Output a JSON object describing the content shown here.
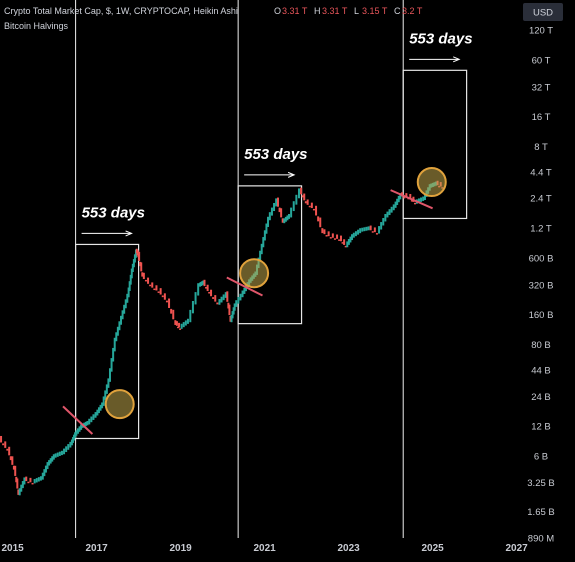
{
  "header": {
    "symbol_line": "Crypto Total Market Cap, $, 1W, CRYPTOCAP, Heikin Ashi",
    "ohlc": [
      {
        "key": "O",
        "value": "3.31 T"
      },
      {
        "key": "H",
        "value": "3.31 T"
      },
      {
        "key": "L",
        "value": "3.15 T"
      },
      {
        "key": "C",
        "value": "3.2 T"
      }
    ],
    "indicator": "Bitcoin Halvings",
    "currency_button": "USD"
  },
  "chart_data": {
    "type": "line",
    "title": "Crypto Total Market Cap, $, 1W, CRYPTOCAP, Heikin Ashi",
    "y_scale": "log",
    "ylim_usd": [
      890000000,
      120000000000000
    ],
    "x_range": [
      2014.7,
      2027.2
    ],
    "y_ticks": [
      {
        "label": "120 T",
        "value": 120000000000000
      },
      {
        "label": "60 T",
        "value": 60000000000000
      },
      {
        "label": "32 T",
        "value": 32000000000000
      },
      {
        "label": "16 T",
        "value": 16000000000000
      },
      {
        "label": "8 T",
        "value": 8000000000000
      },
      {
        "label": "4.4 T",
        "value": 4400000000000
      },
      {
        "label": "2.4 T",
        "value": 2400000000000
      },
      {
        "label": "1.2 T",
        "value": 1200000000000
      },
      {
        "label": "600 B",
        "value": 600000000000
      },
      {
        "label": "320 B",
        "value": 320000000000
      },
      {
        "label": "160 B",
        "value": 160000000000
      },
      {
        "label": "80 B",
        "value": 80000000000
      },
      {
        "label": "44 B",
        "value": 44000000000
      },
      {
        "label": "24 B",
        "value": 24000000000
      },
      {
        "label": "12 B",
        "value": 12000000000
      },
      {
        "label": "6 B",
        "value": 6000000000
      },
      {
        "label": "3.25 B",
        "value": 3250000000
      },
      {
        "label": "1.65 B",
        "value": 1650000000
      },
      {
        "label": "890 M",
        "value": 890000000
      }
    ],
    "x_ticks": [
      {
        "label": "2015",
        "value": 2015
      },
      {
        "label": "2017",
        "value": 2017
      },
      {
        "label": "2019",
        "value": 2019
      },
      {
        "label": "2021",
        "value": 2021
      },
      {
        "label": "2023",
        "value": 2023
      },
      {
        "label": "2025",
        "value": 2025
      },
      {
        "label": "2027",
        "value": 2027
      }
    ],
    "halvings": [
      2016.5,
      2020.37,
      2024.3
    ],
    "series": [
      {
        "points": [
          [
            2014.7,
            9000000000.0
          ],
          [
            2014.9,
            7000000000.0
          ],
          [
            2015.05,
            4500000000.0
          ],
          [
            2015.15,
            2500000000.0
          ],
          [
            2015.3,
            3500000000.0
          ],
          [
            2015.5,
            3300000000.0
          ],
          [
            2015.7,
            3600000000.0
          ],
          [
            2015.85,
            5000000000.0
          ],
          [
            2016.0,
            6000000000.0
          ],
          [
            2016.2,
            6500000000.0
          ],
          [
            2016.4,
            8000000000.0
          ],
          [
            2016.5,
            10000000000.0
          ],
          [
            2016.65,
            12000000000.0
          ],
          [
            2016.8,
            13000000000.0
          ],
          [
            2017.0,
            16000000000.0
          ],
          [
            2017.15,
            20000000000.0
          ],
          [
            2017.3,
            35000000000.0
          ],
          [
            2017.45,
            90000000000.0
          ],
          [
            2017.6,
            150000000000.0
          ],
          [
            2017.75,
            250000000000.0
          ],
          [
            2017.85,
            450000000000.0
          ],
          [
            2017.95,
            700000000000.0
          ],
          [
            2018.0,
            650000000000.0
          ],
          [
            2018.1,
            400000000000.0
          ],
          [
            2018.3,
            320000000000.0
          ],
          [
            2018.5,
            280000000000.0
          ],
          [
            2018.7,
            220000000000.0
          ],
          [
            2018.9,
            130000000000.0
          ],
          [
            2019.0,
            120000000000.0
          ],
          [
            2019.2,
            140000000000.0
          ],
          [
            2019.45,
            320000000000.0
          ],
          [
            2019.55,
            340000000000.0
          ],
          [
            2019.7,
            270000000000.0
          ],
          [
            2019.9,
            210000000000.0
          ],
          [
            2020.1,
            260000000000.0
          ],
          [
            2020.2,
            140000000000.0
          ],
          [
            2020.3,
            200000000000.0
          ],
          [
            2020.5,
            270000000000.0
          ],
          [
            2020.65,
            350000000000.0
          ],
          [
            2020.8,
            420000000000.0
          ],
          [
            2020.95,
            800000000000.0
          ],
          [
            2021.1,
            1500000000000.0
          ],
          [
            2021.3,
            2300000000000.0
          ],
          [
            2021.45,
            1400000000000.0
          ],
          [
            2021.6,
            1600000000000.0
          ],
          [
            2021.85,
            2900000000000.0
          ],
          [
            2022.0,
            2200000000000.0
          ],
          [
            2022.2,
            1900000000000.0
          ],
          [
            2022.4,
            1100000000000.0
          ],
          [
            2022.6,
            1000000000000.0
          ],
          [
            2022.8,
            950000000000.0
          ],
          [
            2022.95,
            800000000000.0
          ],
          [
            2023.1,
            1000000000000.0
          ],
          [
            2023.3,
            1150000000000.0
          ],
          [
            2023.5,
            1200000000000.0
          ],
          [
            2023.7,
            1100000000000.0
          ],
          [
            2023.9,
            1600000000000.0
          ],
          [
            2024.1,
            2000000000000.0
          ],
          [
            2024.25,
            2600000000000.0
          ],
          [
            2024.45,
            2500000000000.0
          ],
          [
            2024.6,
            2200000000000.0
          ],
          [
            2024.8,
            2400000000000.0
          ],
          [
            2024.95,
            3200000000000.0
          ],
          [
            2025.1,
            3400000000000.0
          ],
          [
            2025.25,
            3200000000000.0
          ]
        ]
      }
    ],
    "annotations": [
      {
        "text": "553 days",
        "halving": 2016.5,
        "box": {
          "x0": 2016.5,
          "x1": 2018.0,
          "y0": 9000000000.0,
          "y1": 820000000000.0
        }
      },
      {
        "text": "553 days",
        "halving": 2020.37,
        "box": {
          "x0": 2020.37,
          "x1": 2021.88,
          "y0": 130000000000.0,
          "y1": 3200000000000.0
        }
      },
      {
        "text": "553 days",
        "halving": 2024.3,
        "box": {
          "x0": 2024.3,
          "x1": 2025.81,
          "y0": 1500000000000.0,
          "y1": 47000000000000.0
        }
      }
    ],
    "halving_markers": [
      {
        "x": 2017.55,
        "y": 20000000000.0
      },
      {
        "x": 2020.75,
        "y": 420000000000.0
      },
      {
        "x": 2024.98,
        "y": 3500000000000.0
      }
    ],
    "trend_cuts": [
      {
        "x0": 2016.2,
        "y0": 19000000000.0,
        "x1": 2016.9,
        "y1": 10000000000.0
      },
      {
        "x0": 2020.1,
        "y0": 380000000000.0,
        "x1": 2020.95,
        "y1": 250000000000.0
      },
      {
        "x0": 2024.0,
        "y0": 2900000000000.0,
        "x1": 2025.0,
        "y1": 1900000000000.0
      }
    ],
    "colors": {
      "up": "#26a69a",
      "down": "#ef5350",
      "marker_fill": "#bfa64a",
      "marker_ring": "#e0a23c",
      "cut": "#e0566a",
      "frame": "#e6e6e6"
    }
  }
}
